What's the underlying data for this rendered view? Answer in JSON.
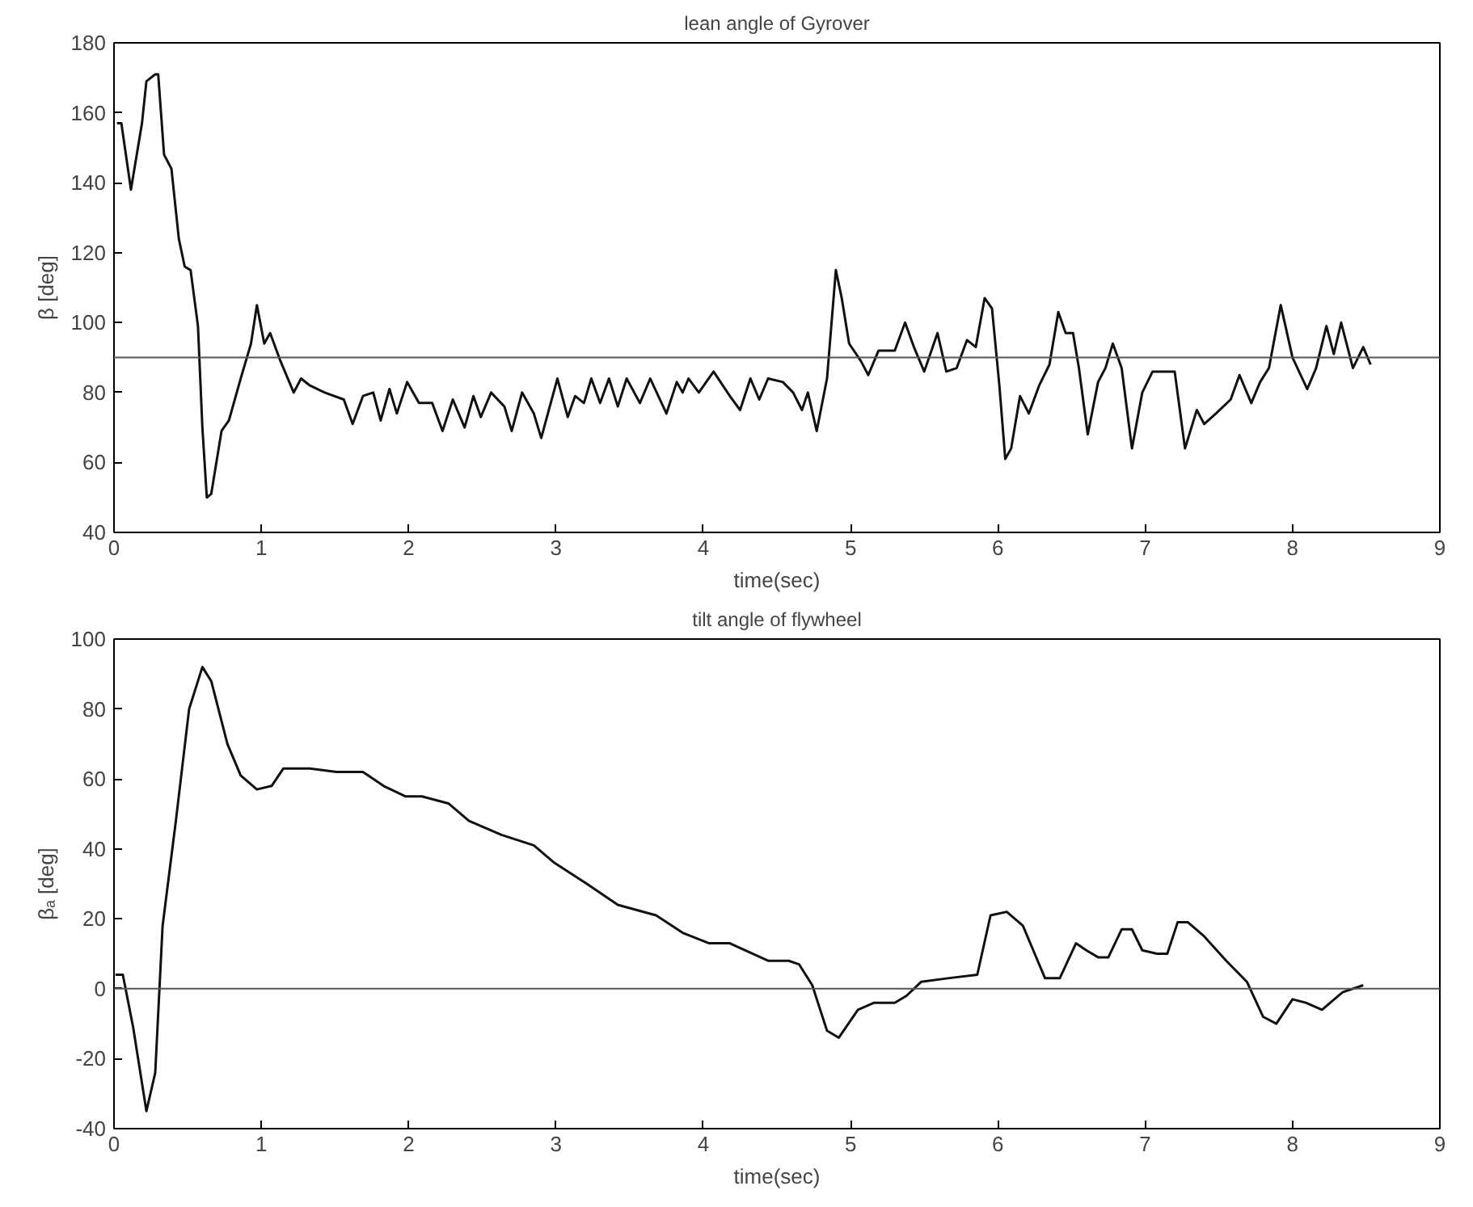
{
  "chart_data": [
    {
      "type": "line",
      "title": "lean angle of Gyrover",
      "xlabel": "time(sec)",
      "ylabel": "β [deg]",
      "xlim": [
        0,
        9
      ],
      "ylim": [
        40,
        180
      ],
      "xticks": [
        0,
        1,
        2,
        3,
        4,
        5,
        6,
        7,
        8,
        9
      ],
      "yticks": [
        40,
        60,
        80,
        100,
        120,
        140,
        160,
        180
      ],
      "grid": false,
      "ref_lines": [
        {
          "axis": "y",
          "value": 90,
          "color": "#555555"
        }
      ],
      "series": [
        {
          "color": "#111111",
          "x": [
            0.02,
            0.05,
            0.115,
            0.19,
            0.22,
            0.28,
            0.3,
            0.34,
            0.39,
            0.44,
            0.48,
            0.52,
            0.57,
            0.6,
            0.63,
            0.66,
            0.73,
            0.78,
            0.86,
            0.93,
            0.97,
            1.02,
            1.06,
            1.13,
            1.22,
            1.27,
            1.33,
            1.43,
            1.56,
            1.62,
            1.69,
            1.76,
            1.81,
            1.87,
            1.92,
            1.99,
            2.07,
            2.16,
            2.23,
            2.3,
            2.38,
            2.44,
            2.49,
            2.56,
            2.65,
            2.7,
            2.77,
            2.85,
            2.9,
            3.01,
            3.08,
            3.13,
            3.19,
            3.24,
            3.3,
            3.36,
            3.42,
            3.48,
            3.57,
            3.64,
            3.75,
            3.82,
            3.86,
            3.9,
            3.97,
            4.07,
            4.18,
            4.25,
            4.32,
            4.38,
            4.44,
            4.54,
            4.61,
            4.67,
            4.71,
            4.77,
            4.84,
            4.9,
            4.94,
            4.99,
            5.07,
            5.12,
            5.19,
            5.3,
            5.37,
            5.43,
            5.5,
            5.59,
            5.65,
            5.72,
            5.79,
            5.85,
            5.91,
            5.96,
            6.01,
            6.05,
            6.09,
            6.15,
            6.21,
            6.28,
            6.35,
            6.41,
            6.46,
            6.51,
            6.55,
            6.61,
            6.68,
            6.73,
            6.78,
            6.84,
            6.91,
            6.98,
            7.05,
            7.13,
            7.2,
            7.27,
            7.35,
            7.4,
            7.48,
            7.58,
            7.64,
            7.72,
            7.78,
            7.84,
            7.92,
            8.0,
            8.1,
            8.16,
            8.23,
            8.28,
            8.33,
            8.41,
            8.48,
            8.53
          ],
          "values": [
            157,
            157,
            138,
            157,
            169,
            171,
            171,
            148,
            144,
            124,
            116,
            115,
            99,
            70,
            50,
            51,
            69,
            72,
            84,
            94,
            105,
            94,
            97,
            89,
            80,
            84,
            82,
            80,
            78,
            71,
            79,
            80,
            72,
            81,
            74,
            83,
            77,
            77,
            69,
            78,
            70,
            79,
            73,
            80,
            76,
            69,
            80,
            74,
            67,
            84,
            73,
            79,
            77,
            84,
            77,
            84,
            76,
            84,
            77,
            84,
            74,
            83,
            80,
            84,
            80,
            86,
            79,
            75,
            84,
            78,
            84,
            83,
            80,
            75,
            80,
            69,
            84,
            115,
            107,
            94,
            89,
            85,
            92,
            92,
            100,
            93,
            86,
            97,
            86,
            87,
            95,
            93,
            107,
            104,
            82,
            61,
            64,
            79,
            74,
            82,
            88,
            103,
            97,
            97,
            87,
            68,
            83,
            87,
            94,
            87,
            64,
            80,
            86,
            86,
            86,
            64,
            75,
            71,
            74,
            78,
            85,
            77,
            83,
            87,
            105,
            90,
            81,
            87,
            99,
            91,
            100,
            87,
            93,
            88
          ]
        }
      ]
    },
    {
      "type": "line",
      "title": "tilt angle of flywheel",
      "xlabel": "time(sec)",
      "ylabel": "βₐ [deg]",
      "xlim": [
        0,
        9
      ],
      "ylim": [
        -40,
        100
      ],
      "xticks": [
        0,
        1,
        2,
        3,
        4,
        5,
        6,
        7,
        8,
        9
      ],
      "yticks": [
        -40,
        -20,
        0,
        20,
        40,
        60,
        80,
        100
      ],
      "grid": false,
      "ref_lines": [
        {
          "axis": "y",
          "value": 0,
          "color": "#555555"
        }
      ],
      "series": [
        {
          "color": "#111111",
          "x": [
            0.01,
            0.06,
            0.13,
            0.22,
            0.28,
            0.33,
            0.42,
            0.51,
            0.6,
            0.66,
            0.77,
            0.86,
            0.97,
            1.07,
            1.15,
            1.33,
            1.51,
            1.69,
            1.83,
            1.98,
            2.09,
            2.27,
            2.41,
            2.63,
            2.85,
            2.99,
            3.21,
            3.42,
            3.68,
            3.86,
            4.04,
            4.18,
            4.44,
            4.58,
            4.65,
            4.74,
            4.84,
            4.92,
            5.05,
            5.16,
            5.3,
            5.38,
            5.48,
            5.66,
            5.86,
            5.95,
            6.06,
            6.17,
            6.24,
            6.32,
            6.42,
            6.53,
            6.6,
            6.68,
            6.75,
            6.84,
            6.91,
            6.98,
            7.08,
            7.15,
            7.22,
            7.29,
            7.4,
            7.55,
            7.69,
            7.8,
            7.89,
            8.0,
            8.09,
            8.2,
            8.34,
            8.48
          ],
          "values": [
            4,
            4,
            -11,
            -35,
            -24,
            18,
            48,
            80,
            92,
            88,
            70,
            61,
            57,
            58,
            63,
            63,
            62,
            62,
            58,
            55,
            55,
            53,
            48,
            44,
            41,
            36,
            30,
            24,
            21,
            16,
            13,
            13,
            8,
            8,
            7,
            1,
            -12,
            -14,
            -6,
            -4,
            -4,
            -2,
            2,
            3,
            4,
            21,
            22,
            18,
            11,
            3,
            3,
            13,
            11,
            9,
            9,
            17,
            17,
            11,
            10,
            10,
            19,
            19,
            15,
            8,
            2,
            -8,
            -10,
            -3,
            -4,
            -6,
            -1,
            1
          ]
        }
      ]
    }
  ]
}
